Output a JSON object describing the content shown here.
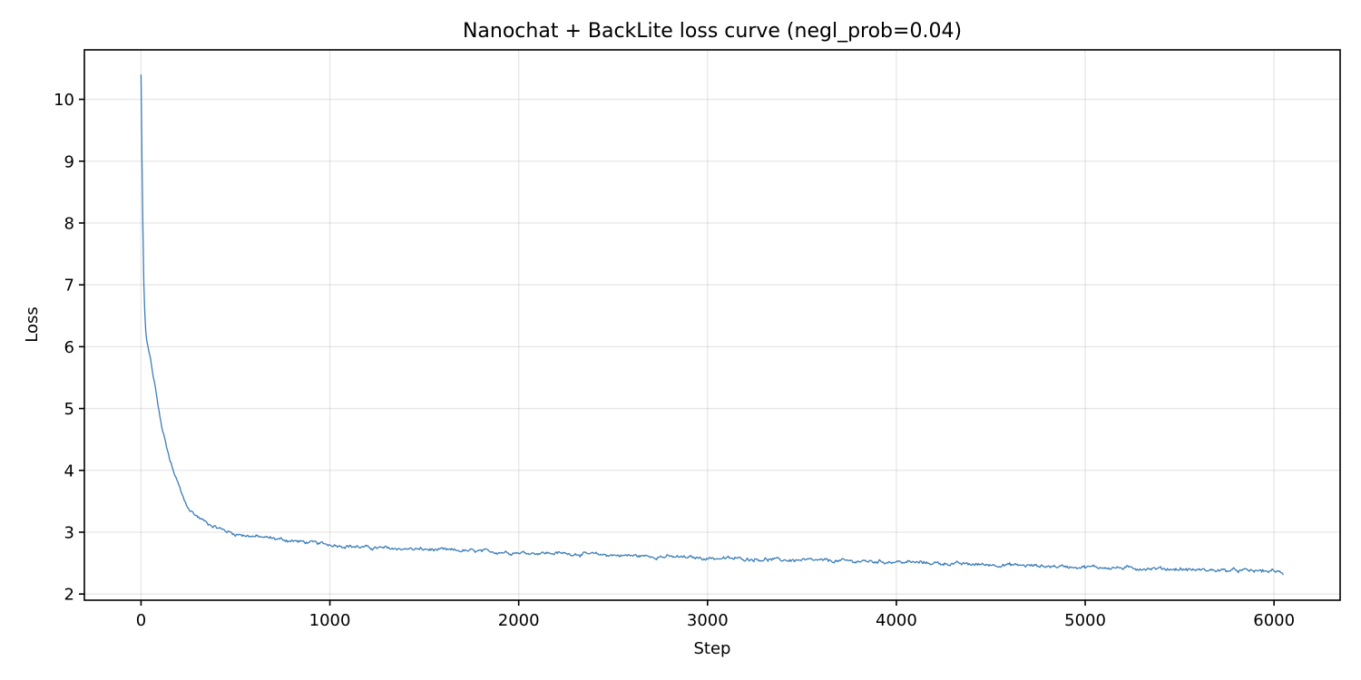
{
  "chart_data": {
    "type": "line",
    "title": "Nanochat + BackLite loss curve (negl_prob=0.04)",
    "xlabel": "Step",
    "ylabel": "Loss",
    "xlim": [
      -300,
      6350
    ],
    "ylim": [
      1.9,
      10.8
    ],
    "xticks": [
      0,
      1000,
      2000,
      3000,
      4000,
      5000,
      6000
    ],
    "xtick_labels": [
      "0",
      "1000",
      "2000",
      "3000",
      "4000",
      "5000",
      "6000"
    ],
    "yticks": [
      2,
      3,
      4,
      5,
      6,
      7,
      8,
      9,
      10
    ],
    "ytick_labels": [
      "2",
      "3",
      "4",
      "5",
      "6",
      "7",
      "8",
      "9",
      "10"
    ],
    "grid": true,
    "legend": null,
    "series": [
      {
        "name": "loss",
        "color": "#3b7db8",
        "x": [
          0,
          2,
          5,
          10,
          15,
          20,
          25,
          30,
          40,
          50,
          60,
          75,
          90,
          110,
          130,
          150,
          170,
          200,
          230,
          260,
          300,
          350,
          400,
          450,
          500,
          600,
          700,
          800,
          900,
          1000,
          1200,
          1400,
          1600,
          1800,
          2000,
          2200,
          2400,
          2600,
          2800,
          3000,
          3200,
          3400,
          3600,
          3800,
          4000,
          4200,
          4400,
          4600,
          4800,
          5000,
          5200,
          5400,
          5600,
          5800,
          6000,
          6050
        ],
        "values": [
          10.4,
          9.85,
          9.0,
          7.9,
          7.0,
          6.55,
          6.25,
          6.1,
          5.95,
          5.8,
          5.6,
          5.35,
          5.05,
          4.7,
          4.45,
          4.2,
          4.0,
          3.75,
          3.5,
          3.35,
          3.25,
          3.15,
          3.08,
          3.02,
          2.97,
          2.93,
          2.9,
          2.86,
          2.83,
          2.8,
          2.75,
          2.73,
          2.71,
          2.69,
          2.67,
          2.66,
          2.64,
          2.62,
          2.6,
          2.58,
          2.57,
          2.55,
          2.54,
          2.53,
          2.52,
          2.5,
          2.48,
          2.47,
          2.45,
          2.44,
          2.42,
          2.41,
          2.39,
          2.38,
          2.37,
          2.33
        ]
      }
    ]
  }
}
